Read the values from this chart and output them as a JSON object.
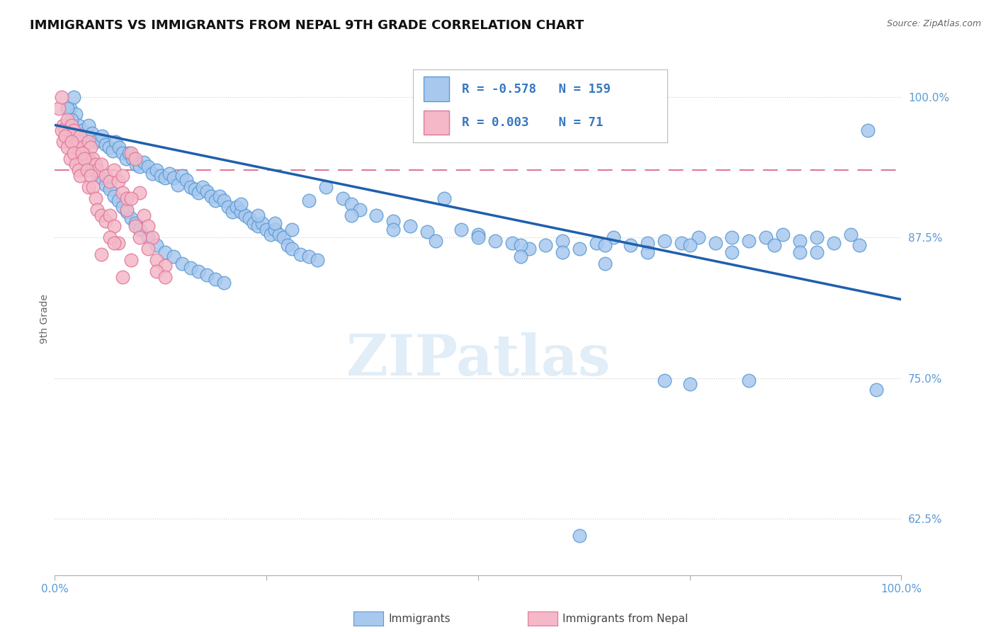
{
  "title": "IMMIGRANTS VS IMMIGRANTS FROM NEPAL 9TH GRADE CORRELATION CHART",
  "source": "Source: ZipAtlas.com",
  "ylabel": "9th Grade",
  "yticks": [
    0.625,
    0.75,
    0.875,
    1.0
  ],
  "ytick_labels": [
    "62.5%",
    "75.0%",
    "87.5%",
    "100.0%"
  ],
  "xlim": [
    0.0,
    1.0
  ],
  "ylim": [
    0.575,
    1.03
  ],
  "blue_color": "#A8C8EE",
  "blue_edge": "#5B9BD5",
  "pink_color": "#F4B8C8",
  "pink_edge": "#E07898",
  "trend_blue": "#1F5FAD",
  "trend_pink": "#E07898",
  "legend_R_blue": "-0.578",
  "legend_N_blue": "159",
  "legend_R_pink": "0.003",
  "legend_N_pink": "71",
  "legend_label_blue": "Immigrants",
  "legend_label_pink": "Immigrants from Nepal",
  "watermark": "ZIPatlas",
  "blue_trend_x": [
    0.0,
    1.0
  ],
  "blue_trend_y": [
    0.975,
    0.82
  ],
  "pink_trend_y": 0.935,
  "grid_color": "#CCCCCC",
  "background": "#FFFFFF",
  "blue_x": [
    0.018,
    0.022,
    0.025,
    0.028,
    0.032,
    0.036,
    0.04,
    0.044,
    0.048,
    0.052,
    0.056,
    0.06,
    0.064,
    0.068,
    0.072,
    0.076,
    0.08,
    0.084,
    0.088,
    0.092,
    0.096,
    0.1,
    0.105,
    0.11,
    0.115,
    0.12,
    0.125,
    0.13,
    0.135,
    0.14,
    0.145,
    0.15,
    0.155,
    0.16,
    0.165,
    0.17,
    0.175,
    0.18,
    0.185,
    0.19,
    0.195,
    0.2,
    0.205,
    0.21,
    0.215,
    0.22,
    0.225,
    0.23,
    0.235,
    0.24,
    0.245,
    0.25,
    0.255,
    0.26,
    0.265,
    0.27,
    0.275,
    0.28,
    0.29,
    0.3,
    0.31,
    0.32,
    0.34,
    0.35,
    0.36,
    0.38,
    0.4,
    0.42,
    0.44,
    0.46,
    0.48,
    0.5,
    0.52,
    0.54,
    0.56,
    0.58,
    0.6,
    0.62,
    0.64,
    0.66,
    0.68,
    0.7,
    0.72,
    0.74,
    0.76,
    0.78,
    0.8,
    0.82,
    0.84,
    0.86,
    0.88,
    0.9,
    0.92,
    0.94,
    0.96,
    0.015,
    0.02,
    0.025,
    0.03,
    0.035,
    0.04,
    0.045,
    0.05,
    0.055,
    0.06,
    0.065,
    0.07,
    0.075,
    0.08,
    0.085,
    0.09,
    0.095,
    0.1,
    0.11,
    0.12,
    0.13,
    0.14,
    0.15,
    0.16,
    0.17,
    0.18,
    0.19,
    0.2,
    0.22,
    0.24,
    0.26,
    0.28,
    0.3,
    0.35,
    0.4,
    0.45,
    0.5,
    0.55,
    0.6,
    0.65,
    0.7,
    0.75,
    0.8,
    0.85,
    0.9,
    0.95,
    0.97,
    0.55,
    0.65,
    0.75,
    0.62,
    0.72,
    0.82,
    0.88
  ],
  "blue_y": [
    0.99,
    1.0,
    0.985,
    0.975,
    0.97,
    0.965,
    0.975,
    0.968,
    0.96,
    0.962,
    0.965,
    0.958,
    0.955,
    0.952,
    0.96,
    0.955,
    0.95,
    0.945,
    0.95,
    0.945,
    0.94,
    0.938,
    0.942,
    0.938,
    0.932,
    0.935,
    0.93,
    0.928,
    0.932,
    0.928,
    0.922,
    0.93,
    0.926,
    0.92,
    0.918,
    0.915,
    0.92,
    0.916,
    0.912,
    0.908,
    0.912,
    0.908,
    0.902,
    0.898,
    0.902,
    0.898,
    0.895,
    0.892,
    0.888,
    0.885,
    0.888,
    0.882,
    0.878,
    0.882,
    0.878,
    0.875,
    0.868,
    0.865,
    0.86,
    0.858,
    0.855,
    0.92,
    0.91,
    0.905,
    0.9,
    0.895,
    0.89,
    0.885,
    0.88,
    0.91,
    0.882,
    0.878,
    0.872,
    0.87,
    0.865,
    0.868,
    0.872,
    0.865,
    0.87,
    0.875,
    0.868,
    0.87,
    0.872,
    0.87,
    0.875,
    0.87,
    0.875,
    0.872,
    0.875,
    0.878,
    0.872,
    0.875,
    0.87,
    0.878,
    0.97,
    0.99,
    0.98,
    0.968,
    0.958,
    0.95,
    0.945,
    0.938,
    0.932,
    0.928,
    0.922,
    0.918,
    0.912,
    0.908,
    0.902,
    0.898,
    0.892,
    0.888,
    0.882,
    0.875,
    0.868,
    0.862,
    0.858,
    0.852,
    0.848,
    0.845,
    0.842,
    0.838,
    0.835,
    0.905,
    0.895,
    0.888,
    0.882,
    0.908,
    0.895,
    0.882,
    0.872,
    0.875,
    0.868,
    0.862,
    0.868,
    0.862,
    0.868,
    0.862,
    0.868,
    0.862,
    0.868,
    0.74,
    0.858,
    0.852,
    0.745,
    0.61,
    0.748,
    0.748,
    0.862
  ],
  "pink_x": [
    0.005,
    0.008,
    0.01,
    0.012,
    0.015,
    0.018,
    0.02,
    0.022,
    0.025,
    0.028,
    0.03,
    0.032,
    0.035,
    0.038,
    0.04,
    0.042,
    0.045,
    0.048,
    0.05,
    0.055,
    0.06,
    0.065,
    0.07,
    0.075,
    0.08,
    0.085,
    0.09,
    0.095,
    0.1,
    0.105,
    0.11,
    0.115,
    0.12,
    0.13,
    0.008,
    0.01,
    0.012,
    0.015,
    0.018,
    0.02,
    0.022,
    0.025,
    0.028,
    0.03,
    0.032,
    0.035,
    0.038,
    0.04,
    0.042,
    0.045,
    0.048,
    0.05,
    0.055,
    0.06,
    0.065,
    0.07,
    0.075,
    0.08,
    0.085,
    0.09,
    0.095,
    0.1,
    0.11,
    0.12,
    0.13,
    0.055,
    0.065,
    0.07,
    0.08,
    0.09
  ],
  "pink_y": [
    0.99,
    1.0,
    0.975,
    0.97,
    0.98,
    0.965,
    0.975,
    0.97,
    0.955,
    0.96,
    0.965,
    0.955,
    0.95,
    0.945,
    0.96,
    0.955,
    0.945,
    0.94,
    0.935,
    0.94,
    0.93,
    0.925,
    0.935,
    0.925,
    0.915,
    0.9,
    0.95,
    0.945,
    0.915,
    0.895,
    0.885,
    0.875,
    0.855,
    0.85,
    0.97,
    0.96,
    0.965,
    0.955,
    0.945,
    0.96,
    0.95,
    0.94,
    0.935,
    0.93,
    0.95,
    0.945,
    0.935,
    0.92,
    0.93,
    0.92,
    0.91,
    0.9,
    0.895,
    0.89,
    0.895,
    0.885,
    0.87,
    0.93,
    0.91,
    0.91,
    0.885,
    0.875,
    0.865,
    0.845,
    0.84,
    0.86,
    0.875,
    0.87,
    0.84,
    0.855
  ]
}
